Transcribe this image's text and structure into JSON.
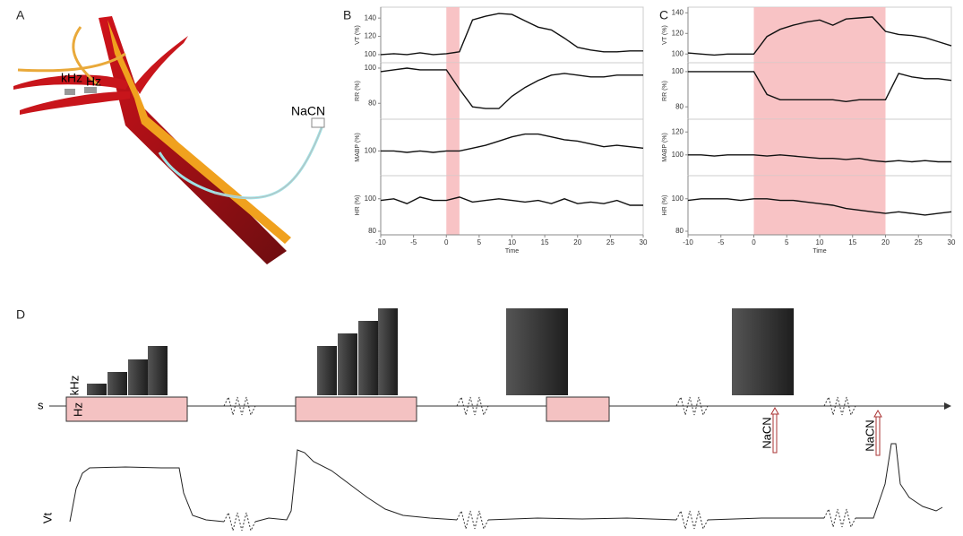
{
  "panels": {
    "a": "A",
    "b": "B",
    "c": "C",
    "d": "D"
  },
  "diagram": {
    "khz": "kHz",
    "hz": "Hz",
    "nacn": "NaCN"
  },
  "schematic": {
    "s": "s",
    "hz": "Hz",
    "khz": "kHz",
    "nacn_1": "NaCN",
    "nacn_2": "NaCN",
    "vt": "Vt"
  },
  "chart_data": [
    {
      "type": "line",
      "ylabel": "VT (%)",
      "span": [
        0,
        2
      ],
      "xlim": [
        -10,
        30
      ],
      "ylim": [
        95,
        148
      ],
      "yticks": [
        100,
        120,
        140
      ],
      "x": [
        -10,
        -8,
        -6,
        -4,
        -2,
        0,
        2,
        4,
        6,
        8,
        10,
        12,
        14,
        16,
        18,
        20,
        22,
        24,
        26,
        28,
        30
      ],
      "values": [
        100,
        101,
        100,
        102,
        100,
        101,
        103,
        138,
        142,
        145,
        144,
        137,
        130,
        127,
        118,
        108,
        105,
        103,
        103,
        104,
        104
      ]
    },
    {
      "type": "line",
      "ylabel": "RR (%)",
      "span": [
        0,
        2
      ],
      "xlim": [
        -10,
        30
      ],
      "ylim": [
        73,
        101
      ],
      "yticks": [
        80,
        100
      ],
      "x": [
        -10,
        -8,
        -6,
        -4,
        -2,
        0,
        2,
        4,
        6,
        8,
        10,
        12,
        14,
        16,
        18,
        20,
        22,
        24,
        26,
        28,
        30
      ],
      "values": [
        98,
        99,
        100,
        99,
        99,
        99,
        88,
        78,
        77,
        77,
        84,
        89,
        93,
        96,
        97,
        96,
        95,
        95,
        96,
        96,
        96
      ]
    },
    {
      "type": "line",
      "ylabel": "MABP (%)",
      "span": [
        0,
        2
      ],
      "xlim": [
        -10,
        30
      ],
      "ylim": [
        85,
        120
      ],
      "yticks": [
        100
      ],
      "x": [
        -10,
        -8,
        -6,
        -4,
        -2,
        0,
        2,
        4,
        6,
        8,
        10,
        12,
        14,
        16,
        18,
        20,
        22,
        24,
        26,
        28,
        30
      ],
      "values": [
        100,
        100,
        99,
        100,
        99,
        100,
        100,
        102,
        104,
        107,
        110,
        112,
        112,
        110,
        108,
        107,
        105,
        103,
        104,
        103,
        102
      ]
    },
    {
      "type": "line",
      "ylabel": "HR (%)",
      "xlabel": "Time",
      "span": [
        0,
        2
      ],
      "xlim": [
        -10,
        30
      ],
      "ylim": [
        80,
        112
      ],
      "yticks": [
        80,
        100
      ],
      "xticks": [
        -10,
        -5,
        0,
        5,
        10,
        15,
        20,
        25,
        30
      ],
      "x": [
        -10,
        -8,
        -6,
        -4,
        -2,
        0,
        2,
        4,
        6,
        8,
        10,
        12,
        14,
        16,
        18,
        20,
        22,
        24,
        26,
        28,
        30
      ],
      "values": [
        99,
        100,
        97,
        101,
        99,
        99,
        101,
        98,
        99,
        100,
        99,
        98,
        99,
        97,
        100,
        97,
        98,
        97,
        99,
        96,
        96
      ]
    },
    {
      "type": "line",
      "ylabel": "VT (%)",
      "span": [
        0,
        20
      ],
      "xlim": [
        -10,
        30
      ],
      "ylim": [
        95,
        142
      ],
      "yticks": [
        100,
        120,
        140
      ],
      "x": [
        -10,
        -8,
        -6,
        -4,
        -2,
        0,
        2,
        4,
        6,
        8,
        10,
        12,
        14,
        16,
        18,
        20,
        22,
        24,
        26,
        28,
        30
      ],
      "values": [
        101,
        100,
        99,
        100,
        100,
        100,
        117,
        124,
        128,
        131,
        133,
        128,
        134,
        135,
        136,
        122,
        119,
        118,
        116,
        112,
        108
      ]
    },
    {
      "type": "line",
      "ylabel": "RR (%)",
      "span": [
        0,
        20
      ],
      "xlim": [
        -10,
        30
      ],
      "ylim": [
        75,
        103
      ],
      "yticks": [
        80,
        100
      ],
      "x": [
        -10,
        -8,
        -6,
        -4,
        -2,
        0,
        2,
        4,
        6,
        8,
        10,
        12,
        14,
        16,
        18,
        20,
        22,
        24,
        26,
        28,
        30
      ],
      "values": [
        100,
        100,
        100,
        100,
        100,
        100,
        87,
        84,
        84,
        84,
        84,
        84,
        83,
        84,
        84,
        84,
        99,
        97,
        96,
        96,
        95
      ]
    },
    {
      "type": "line",
      "ylabel": "MABP (%)",
      "span": [
        0,
        20
      ],
      "xlim": [
        -10,
        30
      ],
      "ylim": [
        85,
        128
      ],
      "yticks": [
        100,
        120
      ],
      "x": [
        -10,
        -8,
        -6,
        -4,
        -2,
        0,
        2,
        4,
        6,
        8,
        10,
        12,
        14,
        16,
        18,
        20,
        22,
        24,
        26,
        28,
        30
      ],
      "values": [
        100,
        100,
        99,
        100,
        100,
        100,
        99,
        100,
        99,
        98,
        97,
        97,
        96,
        97,
        95,
        94,
        95,
        94,
        95,
        94,
        94
      ]
    },
    {
      "type": "line",
      "ylabel": "HR (%)",
      "xlabel": "Time",
      "span": [
        0,
        20
      ],
      "xlim": [
        -10,
        30
      ],
      "ylim": [
        80,
        112
      ],
      "yticks": [
        80,
        100
      ],
      "xticks": [
        -10,
        -5,
        0,
        5,
        10,
        15,
        20,
        25,
        30
      ],
      "x": [
        -10,
        -8,
        -6,
        -4,
        -2,
        0,
        2,
        4,
        6,
        8,
        10,
        12,
        14,
        16,
        18,
        20,
        22,
        24,
        26,
        28,
        30
      ],
      "values": [
        99,
        100,
        100,
        100,
        99,
        100,
        100,
        99,
        99,
        98,
        97,
        96,
        94,
        93,
        92,
        91,
        92,
        91,
        90,
        91,
        92
      ]
    }
  ]
}
